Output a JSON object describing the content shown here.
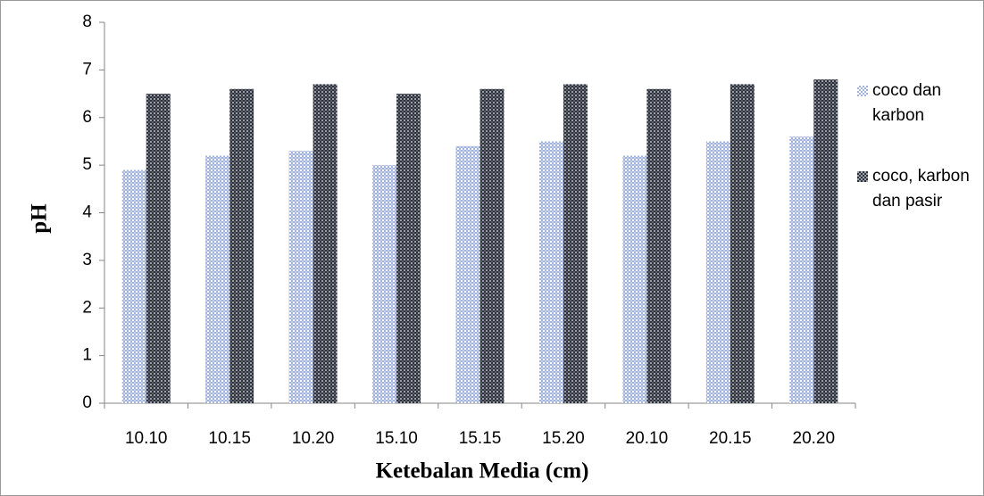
{
  "chart_data": {
    "type": "bar",
    "x_label": "Ketebalan Media (cm)",
    "y_label": "pH",
    "categories": [
      "10.10",
      "10.15",
      "10.20",
      "15.10",
      "15.15",
      "15.20",
      "20.10",
      "20.15",
      "20.20"
    ],
    "series": [
      {
        "name": "coco dan karbon",
        "color": "#9fb3de",
        "values": [
          4.9,
          5.2,
          5.3,
          5.0,
          5.4,
          5.5,
          5.2,
          5.5,
          5.6
        ]
      },
      {
        "name": "coco, karbon dan pasir",
        "color": "#2e323c",
        "values": [
          6.5,
          6.6,
          6.7,
          6.5,
          6.6,
          6.7,
          6.6,
          6.7,
          6.8
        ]
      }
    ],
    "ylim": [
      0,
      8
    ],
    "yticks": [
      0,
      1,
      2,
      3,
      4,
      5,
      6,
      7,
      8
    ],
    "grid": false,
    "legend": "right"
  }
}
